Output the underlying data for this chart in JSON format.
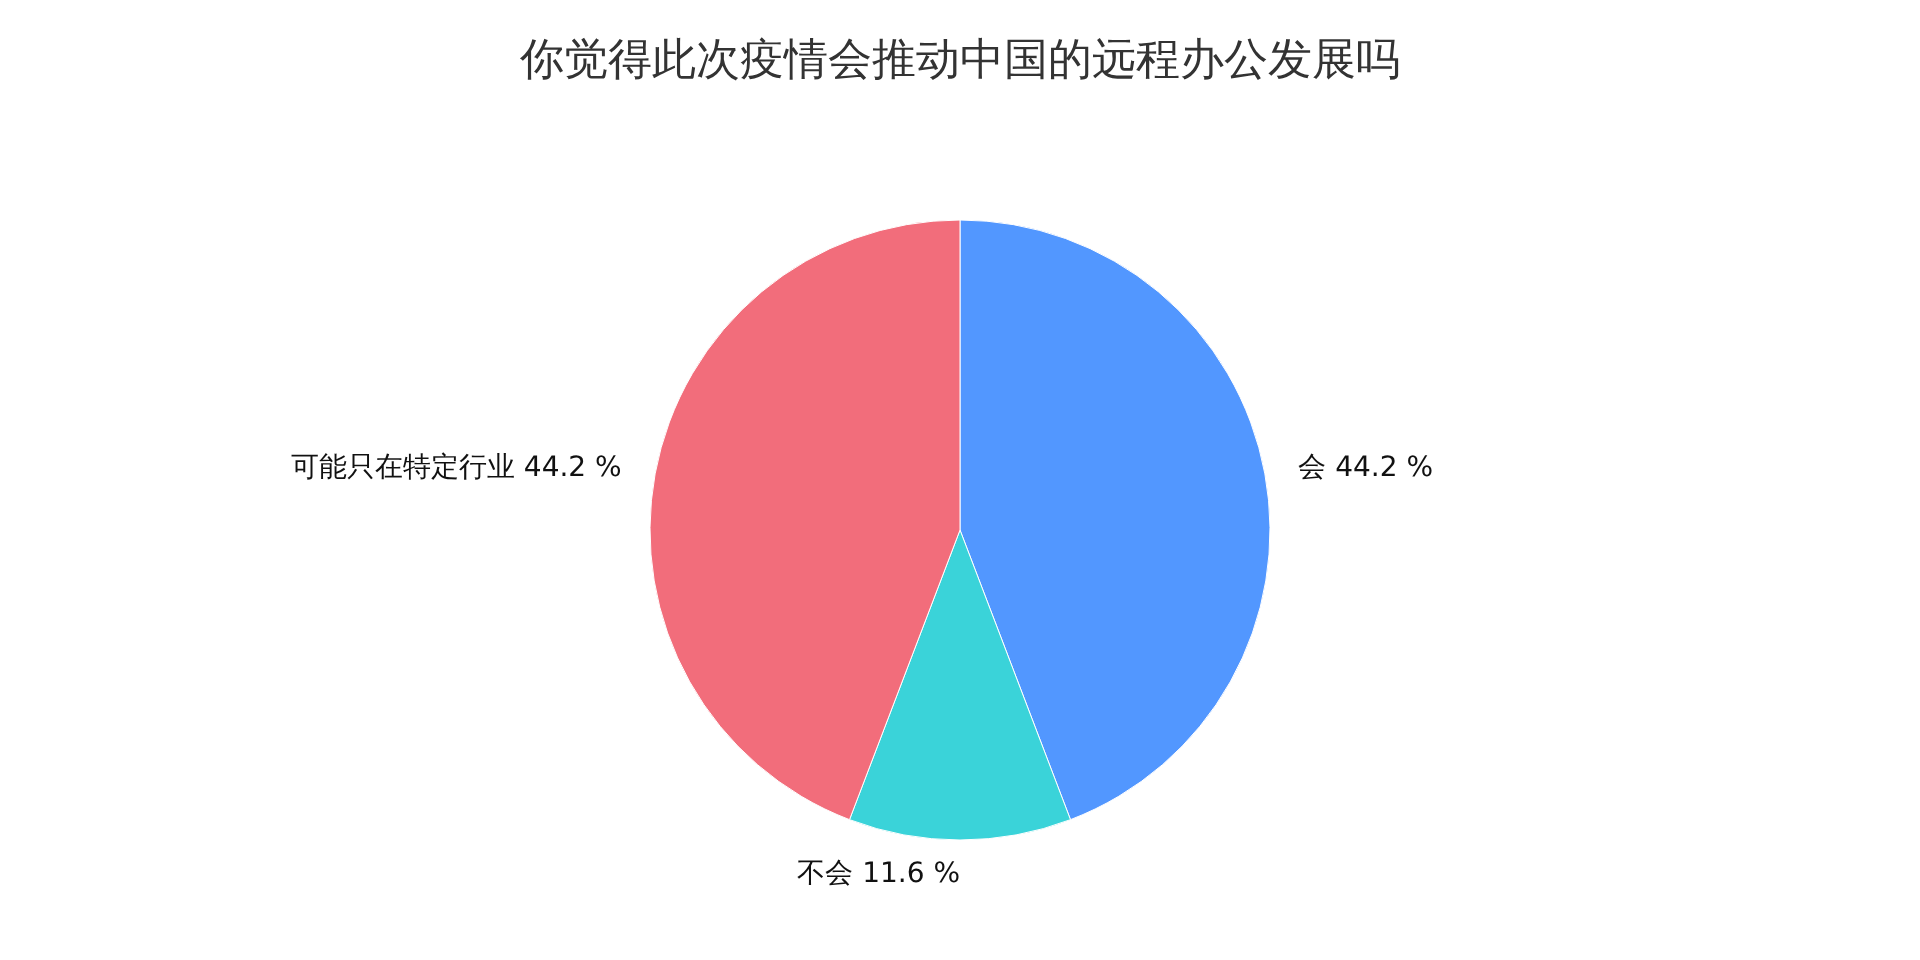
{
  "chart_data": {
    "type": "pie",
    "title": "你觉得此次疫情会推动中国的远程办公发展吗",
    "categories": [
      "会",
      "不会",
      "可能只在特定行业"
    ],
    "values": [
      44.2,
      11.6,
      44.2
    ],
    "value_labels": [
      "44.2 %",
      "11.6 %",
      "44.2 %"
    ],
    "colors": [
      "#5297ff",
      "#3ad3d9",
      "#f26d7b"
    ],
    "legend": false
  }
}
